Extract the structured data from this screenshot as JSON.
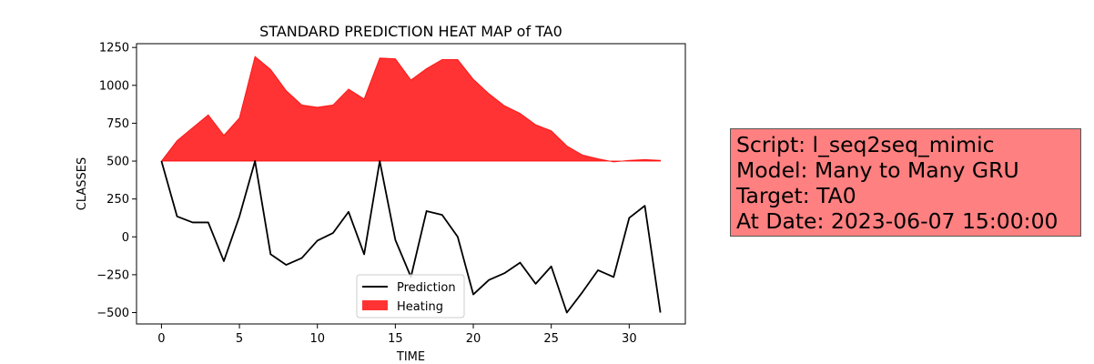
{
  "chart_data": {
    "type": "line",
    "title": "STANDARD PREDICTION HEAT MAP of TA0",
    "xlabel": "TIME",
    "ylabel": "CLASSES",
    "xlim": [
      -1.6,
      33.6
    ],
    "ylim": [
      -575,
      1275
    ],
    "xticks": [
      0,
      5,
      10,
      15,
      20,
      25,
      30
    ],
    "yticks": [
      -500,
      -250,
      0,
      250,
      500,
      750,
      1000,
      1250
    ],
    "legend_position": "lower-center",
    "series": [
      {
        "name": "Prediction",
        "kind": "line",
        "color": "#000000",
        "x": [
          0,
          1,
          2,
          3,
          4,
          5,
          6,
          7,
          8,
          9,
          10,
          11,
          12,
          13,
          14,
          15,
          16,
          17,
          18,
          19,
          20,
          21,
          22,
          23,
          24,
          25,
          26,
          27,
          28,
          29,
          30,
          31,
          32
        ],
        "values": [
          500,
          135,
          95,
          95,
          -160,
          135,
          500,
          -115,
          -185,
          -140,
          -25,
          25,
          165,
          -115,
          500,
          -20,
          -265,
          170,
          145,
          0,
          -380,
          -285,
          -240,
          -170,
          -310,
          -195,
          -500,
          -365,
          -220,
          -265,
          125,
          205,
          -500
        ]
      },
      {
        "name": "Heating",
        "kind": "area",
        "color": "#ff0000",
        "baseline": 500,
        "x": [
          0,
          1,
          2,
          3,
          4,
          5,
          6,
          7,
          8,
          9,
          10,
          11,
          12,
          13,
          14,
          15,
          16,
          17,
          18,
          19,
          20,
          21,
          22,
          23,
          24,
          25,
          26,
          27,
          28,
          29,
          30,
          31,
          32
        ],
        "values": [
          500,
          635,
          720,
          805,
          670,
          785,
          1190,
          1105,
          965,
          870,
          855,
          870,
          975,
          910,
          1180,
          1175,
          1035,
          1110,
          1170,
          1170,
          1040,
          945,
          865,
          815,
          740,
          700,
          600,
          540,
          515,
          495,
          505,
          510,
          505
        ]
      }
    ]
  },
  "infobox": {
    "lines": [
      "Script: l_seq2seq_mimic",
      "Model: Many to Many GRU",
      "Target: TA0",
      "At Date: 2023-06-07 15:00:00"
    ]
  }
}
